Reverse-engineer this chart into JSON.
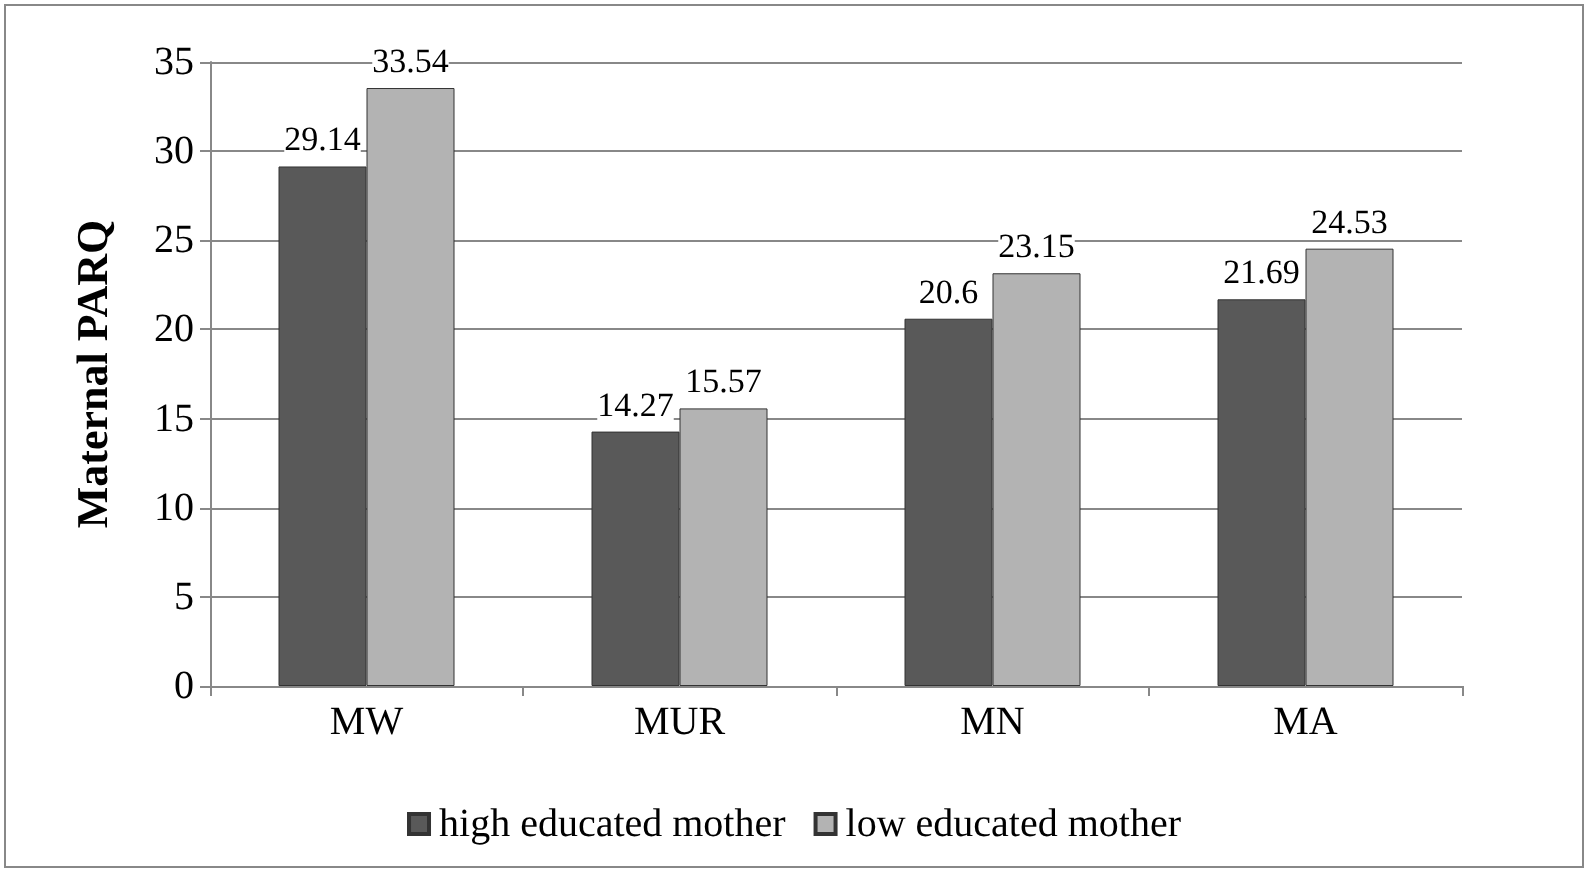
{
  "chart_data": {
    "type": "bar",
    "ylabel": "Maternal PARQ",
    "categories": [
      "MW",
      "MUR",
      "MN",
      "MA"
    ],
    "series": [
      {
        "name": "high educated mother",
        "color": "#595959",
        "values": [
          29.14,
          14.27,
          20.6,
          21.69
        ]
      },
      {
        "name": "low educated mother",
        "color": "#b3b3b3",
        "values": [
          33.54,
          15.57,
          23.15,
          24.53
        ]
      }
    ],
    "ylim": [
      0,
      35
    ],
    "yticks": [
      0,
      5,
      10,
      15,
      20,
      25,
      30,
      35
    ],
    "grid": "y",
    "legend": "bottom",
    "data_labels": true
  }
}
